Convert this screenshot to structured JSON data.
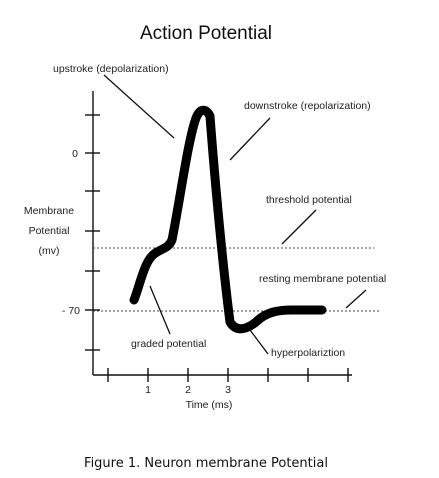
{
  "title": "Action Potential",
  "labels": {
    "upstroke": "upstroke (depolarization)",
    "downstroke": "downstroke (repolarization)",
    "threshold": "threshold potential",
    "resting": "resting membrane potential",
    "graded": "graded potential",
    "hyperpolarization": "hyperpolariztion"
  },
  "yaxis": {
    "label_line1": "Membrane",
    "label_line2": "Potential",
    "label_line3": "(mv)",
    "ticks": [
      "0",
      "- 70"
    ]
  },
  "xaxis": {
    "label": "Time (ms)",
    "ticks": [
      "1",
      "2",
      "3"
    ]
  },
  "caption": "Figure 1.  Neuron membrane Potential",
  "colors": {
    "curve": "#000000",
    "text": "#222222"
  }
}
